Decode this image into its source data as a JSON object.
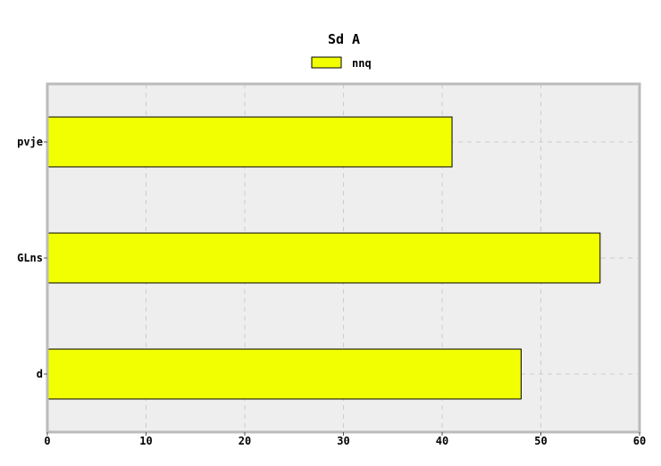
{
  "chart_data": {
    "type": "bar",
    "orientation": "horizontal",
    "title": "Sd A",
    "xlabel": "",
    "ylabel": "",
    "categories": [
      "pvje",
      "GLns",
      "d"
    ],
    "series": [
      {
        "name": "nnq",
        "values": [
          41,
          56,
          48
        ]
      }
    ],
    "xlim": [
      0,
      60
    ],
    "x_ticks": [
      "0",
      "10",
      "20",
      "30",
      "40",
      "50",
      "60"
    ],
    "grid": true,
    "legend_position": "top-center",
    "colors": {
      "bar_fill": "#f2ff00",
      "bar_stroke": "#000000",
      "plot_background": "#eeeeee",
      "plot_border": "#bbbbbb",
      "grid": "#cccccc"
    }
  }
}
